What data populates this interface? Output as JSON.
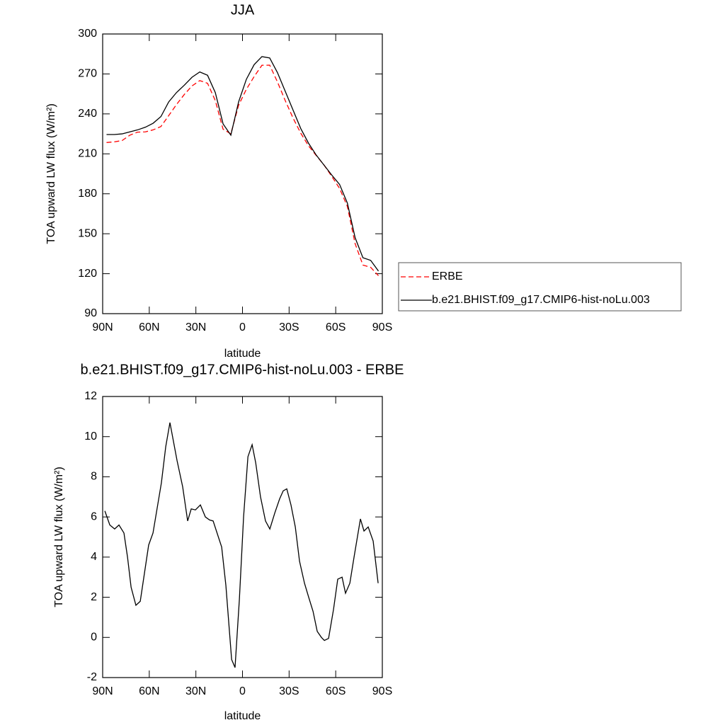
{
  "chart_data": [
    {
      "type": "line",
      "title": "JJA",
      "xlabel": "latitude",
      "ylabel": "TOA upward LW flux (W/m²)",
      "x": [
        87.5,
        82.5,
        77.5,
        72.5,
        67.5,
        62.5,
        57.5,
        52.5,
        47.5,
        42.5,
        37.5,
        32.5,
        27.5,
        22.5,
        17.5,
        12.5,
        7.5,
        2.5,
        -2.5,
        -7.5,
        -12.5,
        -17.5,
        -22.5,
        -27.5,
        -32.5,
        -37.5,
        -42.5,
        -47.5,
        -52.5,
        -57.5,
        -62.5,
        -67.5,
        -72.5,
        -77.5,
        -82.5,
        -87.5
      ],
      "series": [
        {
          "name": "ERBE",
          "color": "#ff0000",
          "line_style": "dashed",
          "values": [
            218.5,
            219,
            220,
            224,
            226.3,
            226.5,
            228,
            230.5,
            238.7,
            247,
            254.5,
            261,
            265,
            263,
            250,
            228.5,
            225,
            246.5,
            258.5,
            268,
            276.5,
            276.6,
            264,
            250,
            237,
            225.5,
            216,
            208.7,
            201.6,
            193,
            184,
            170.5,
            142.5,
            126.5,
            124.8,
            118.5
          ]
        },
        {
          "name": "b.e21.BHIST.f09_g17.CMIP6-hist-noLu.003",
          "color": "#000000",
          "line_style": "solid",
          "values": [
            224.5,
            224.5,
            225,
            226.5,
            228,
            230,
            233,
            238,
            249,
            256,
            261.5,
            267.5,
            271.5,
            269,
            256,
            232.5,
            224,
            249,
            266,
            277,
            283,
            282,
            271,
            257,
            243,
            229,
            218,
            209,
            201.5,
            194,
            187,
            173,
            147,
            132,
            130,
            122
          ]
        }
      ],
      "xlim": [
        90,
        -90
      ],
      "xticks": [
        {
          "value": 90,
          "label": "90N"
        },
        {
          "value": 60,
          "label": "60N"
        },
        {
          "value": 30,
          "label": "30N"
        },
        0,
        {
          "value": -30,
          "label": "30S"
        },
        {
          "value": -60,
          "label": "60S"
        },
        {
          "value": -90,
          "label": "90S"
        }
      ],
      "ylim": [
        90,
        300
      ],
      "yticks": [
        90,
        120,
        150,
        180,
        210,
        240,
        270,
        300
      ],
      "legend": "right"
    },
    {
      "type": "line",
      "title": "b.e21.BHIST.f09_g17.CMIP6-hist-noLu.003 - ERBE",
      "xlabel": "latitude",
      "ylabel": "TOA upward LW flux (W/m²)",
      "x": [
        88.6,
        85.4,
        82.3,
        79.5,
        76.3,
        74.0,
        71.7,
        68.6,
        65.8,
        60.4,
        57.6,
        52.2,
        49.4,
        46.7,
        42.1,
        38.5,
        35.3,
        33.0,
        30.3,
        27.1,
        23.9,
        21.2,
        18.9,
        13.4,
        10.7,
        7.0,
        4.8,
        2.0,
        -0.7,
        -3.5,
        -6.2,
        -8.5,
        -11.6,
        -14.8,
        -17.6,
        -20.8,
        -23.9,
        -26.2,
        -28.5,
        -31.2,
        -34.0,
        -36.7,
        -39.9,
        -42.6,
        -45.4,
        -48.1,
        -50.8,
        -52.7,
        -55.4,
        -58.6,
        -61.3,
        -64.1,
        -66.3,
        -69.1,
        -71.8,
        -75.9,
        -78.2,
        -80.9,
        -84.1,
        -87.3
      ],
      "values": [
        6.3,
        5.6,
        5.4,
        5.6,
        5.2,
        4.0,
        2.5,
        1.6,
        1.8,
        4.6,
        5.2,
        7.7,
        9.5,
        10.7,
        8.8,
        7.5,
        5.8,
        6.4,
        6.35,
        6.6,
        6.0,
        5.85,
        5.8,
        4.5,
        2.6,
        -1.1,
        -1.5,
        1.9,
        6.0,
        9.0,
        9.6,
        8.7,
        7.0,
        5.8,
        5.4,
        6.2,
        6.9,
        7.3,
        7.4,
        6.6,
        5.5,
        3.8,
        2.7,
        2.0,
        1.3,
        0.3,
        0.0,
        -0.15,
        -0.05,
        1.4,
        2.9,
        3.0,
        2.2,
        2.7,
        4.0,
        5.9,
        5.3,
        5.5,
        4.8,
        2.7
      ],
      "color": "#000000",
      "xlim": [
        90,
        -90
      ],
      "xticks": [
        {
          "value": 90,
          "label": "90N"
        },
        {
          "value": 60,
          "label": "60N"
        },
        {
          "value": 30,
          "label": "30N"
        },
        0,
        {
          "value": -30,
          "label": "30S"
        },
        {
          "value": -60,
          "label": "60S"
        },
        {
          "value": -90,
          "label": "90S"
        }
      ],
      "ylim": [
        -2,
        12
      ],
      "yticks": [
        -2,
        0,
        2,
        4,
        6,
        8,
        10,
        12
      ]
    }
  ]
}
